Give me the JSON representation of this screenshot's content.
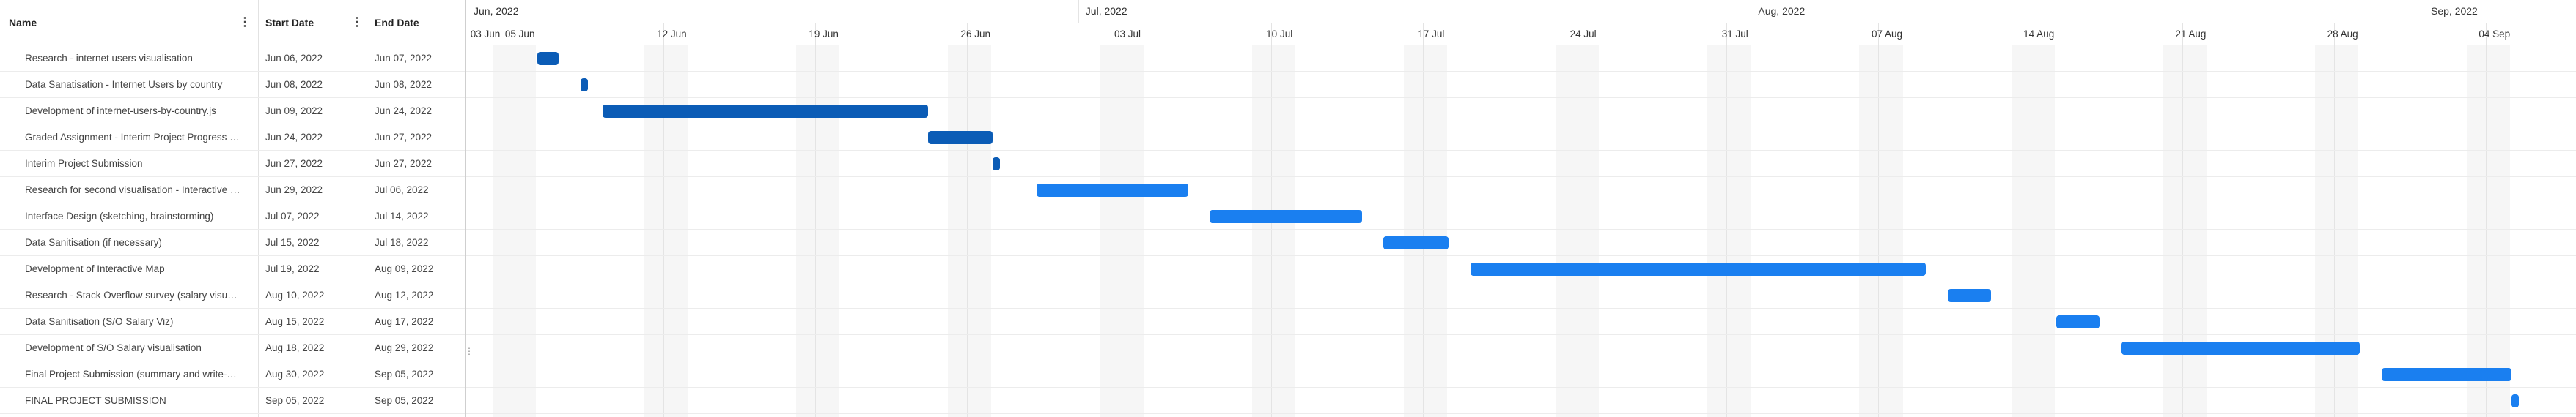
{
  "grid": {
    "columns": {
      "name": "Name",
      "start": "Start Date",
      "end": "End Date"
    },
    "rows": [
      {
        "name": "Research - internet users visualisation",
        "start": "Jun 06, 2022",
        "end": "Jun 07, 2022"
      },
      {
        "name": "Data Sanatisation - Internet Users by country",
        "start": "Jun 08, 2022",
        "end": "Jun 08, 2022"
      },
      {
        "name": "Development of internet-users-by-country.js",
        "start": "Jun 09, 2022",
        "end": "Jun 24, 2022"
      },
      {
        "name": "Graded Assignment - Interim Project Progress …",
        "start": "Jun 24, 2022",
        "end": "Jun 27, 2022"
      },
      {
        "name": "Interim Project Submission",
        "start": "Jun 27, 2022",
        "end": "Jun 27, 2022"
      },
      {
        "name": "Research for second visualisation - Interactive …",
        "start": "Jun 29, 2022",
        "end": "Jul 06, 2022"
      },
      {
        "name": "Interface Design (sketching, brainstorming)",
        "start": "Jul 07, 2022",
        "end": "Jul 14, 2022"
      },
      {
        "name": "Data Sanitisation (if necessary)",
        "start": "Jul 15, 2022",
        "end": "Jul 18, 2022"
      },
      {
        "name": "Development of Interactive Map",
        "start": "Jul 19, 2022",
        "end": "Aug 09, 2022"
      },
      {
        "name": "Research - Stack Overflow survey (salary visu…",
        "start": "Aug 10, 2022",
        "end": "Aug 12, 2022"
      },
      {
        "name": "Data Sanitisation (S/O Salary Viz)",
        "start": "Aug 15, 2022",
        "end": "Aug 17, 2022"
      },
      {
        "name": "Development of S/O Salary visualisation",
        "start": "Aug 18, 2022",
        "end": "Aug 29, 2022"
      },
      {
        "name": "Final Project Submission (summary and write-…",
        "start": "Aug 30, 2022",
        "end": "Sep 05, 2022"
      },
      {
        "name": "FINAL PROJECT SUBMISSION",
        "start": "Sep 05, 2022",
        "end": "Sep 05, 2022"
      }
    ]
  },
  "timeline": {
    "months": [
      "Jun, 2022",
      "Jul, 2022",
      "Aug, 2022",
      "Sep, 2022"
    ],
    "weeks": [
      "03 Jun",
      "05 Jun",
      "12 Jun",
      "19 Jun",
      "26 Jun",
      "03 Jul",
      "10 Jul",
      "17 Jul",
      "24 Jul",
      "31 Jul",
      "07 Aug",
      "14 Aug",
      "21 Aug",
      "28 Aug",
      "04 Sep"
    ]
  },
  "bars": [
    {
      "start": "2022-06-06",
      "end": "2022-06-07",
      "color": "#0b5cb6"
    },
    {
      "start": "2022-06-08",
      "end": "2022-06-08",
      "color": "#0b5cb6"
    },
    {
      "start": "2022-06-09",
      "end": "2022-06-24",
      "color": "#0b5cb6"
    },
    {
      "start": "2022-06-24",
      "end": "2022-06-27",
      "color": "#0b5cb6"
    },
    {
      "start": "2022-06-27",
      "end": "2022-06-27",
      "color": "#0b5cb6"
    },
    {
      "start": "2022-06-29",
      "end": "2022-07-06",
      "color": "#1a7ff0"
    },
    {
      "start": "2022-07-07",
      "end": "2022-07-14",
      "color": "#1a7ff0"
    },
    {
      "start": "2022-07-15",
      "end": "2022-07-18",
      "color": "#1a7ff0"
    },
    {
      "start": "2022-07-19",
      "end": "2022-08-09",
      "color": "#1a7ff0"
    },
    {
      "start": "2022-08-10",
      "end": "2022-08-12",
      "color": "#1a7ff0"
    },
    {
      "start": "2022-08-15",
      "end": "2022-08-17",
      "color": "#1a7ff0"
    },
    {
      "start": "2022-08-18",
      "end": "2022-08-29",
      "color": "#1a7ff0"
    },
    {
      "start": "2022-08-30",
      "end": "2022-09-05",
      "color": "#1a7ff0"
    },
    {
      "start": "2022-09-05",
      "end": "2022-09-05",
      "color": "#1a7ff0"
    }
  ]
}
